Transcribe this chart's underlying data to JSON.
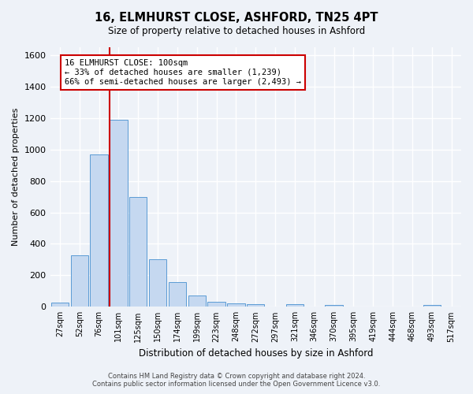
{
  "title": "16, ELMHURST CLOSE, ASHFORD, TN25 4PT",
  "subtitle": "Size of property relative to detached houses in Ashford",
  "xlabel": "Distribution of detached houses by size in Ashford",
  "ylabel": "Number of detached properties",
  "footer_line1": "Contains HM Land Registry data © Crown copyright and database right 2024.",
  "footer_line2": "Contains public sector information licensed under the Open Government Licence v3.0.",
  "categories": [
    "27sqm",
    "52sqm",
    "76sqm",
    "101sqm",
    "125sqm",
    "150sqm",
    "174sqm",
    "199sqm",
    "223sqm",
    "248sqm",
    "272sqm",
    "297sqm",
    "321sqm",
    "346sqm",
    "370sqm",
    "395sqm",
    "419sqm",
    "444sqm",
    "468sqm",
    "493sqm",
    "517sqm"
  ],
  "values": [
    25,
    325,
    970,
    1190,
    700,
    300,
    155,
    70,
    30,
    20,
    15,
    0,
    15,
    0,
    12,
    0,
    0,
    0,
    0,
    13,
    0
  ],
  "bar_color": "#c5d8f0",
  "bar_edge_color": "#5b9bd5",
  "background_color": "#eef2f8",
  "grid_color": "#ffffff",
  "annotation_box_color": "#ffffff",
  "annotation_border_color": "#cc0000",
  "vline_color": "#cc0000",
  "annotation_text_line1": "16 ELMHURST CLOSE: 100sqm",
  "annotation_text_line2": "← 33% of detached houses are smaller (1,239)",
  "annotation_text_line3": "66% of semi-detached houses are larger (2,493) →",
  "ylim": [
    0,
    1650
  ],
  "yticks": [
    0,
    200,
    400,
    600,
    800,
    1000,
    1200,
    1400,
    1600
  ]
}
